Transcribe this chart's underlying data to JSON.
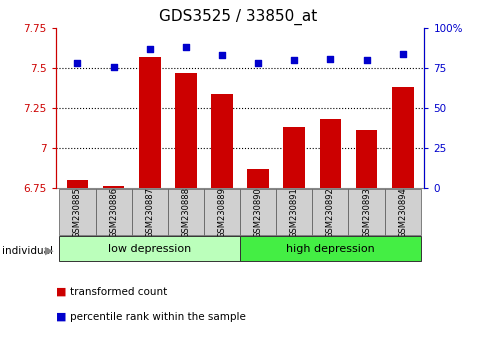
{
  "title": "GDS3525 / 33850_at",
  "samples": [
    "GSM230885",
    "GSM230886",
    "GSM230887",
    "GSM230888",
    "GSM230889",
    "GSM230890",
    "GSM230891",
    "GSM230892",
    "GSM230893",
    "GSM230894"
  ],
  "transformed_count": [
    6.8,
    6.76,
    7.57,
    7.47,
    7.34,
    6.87,
    7.13,
    7.18,
    7.11,
    7.38
  ],
  "percentile_rank": [
    78,
    76,
    87,
    88,
    83,
    78,
    80,
    81,
    80,
    84
  ],
  "ylim_left": [
    6.75,
    7.75
  ],
  "ylim_right": [
    0,
    100
  ],
  "yticks_left": [
    6.75,
    7.0,
    7.25,
    7.5,
    7.75
  ],
  "yticks_right": [
    0,
    25,
    50,
    75,
    100
  ],
  "ytick_labels_left": [
    "6.75",
    "7",
    "7.25",
    "7.5",
    "7.75"
  ],
  "ytick_labels_right": [
    "0",
    "25",
    "50",
    "75",
    "100%"
  ],
  "bar_color": "#cc0000",
  "dot_color": "#0000cc",
  "group_defs": [
    {
      "label": "low depression",
      "start": 0,
      "end": 4,
      "color": "#bbffbb"
    },
    {
      "label": "high depression",
      "start": 5,
      "end": 9,
      "color": "#44ee44"
    }
  ],
  "left_label": "individual",
  "legend_items": [
    "transformed count",
    "percentile rank within the sample"
  ],
  "legend_colors": [
    "#cc0000",
    "#0000cc"
  ],
  "axis_color_left": "#cc0000",
  "axis_color_right": "#0000cc",
  "title_fontsize": 11,
  "tick_fontsize": 7.5,
  "sample_fontsize": 6.0,
  "group_fontsize": 8,
  "legend_fontsize": 7.5
}
